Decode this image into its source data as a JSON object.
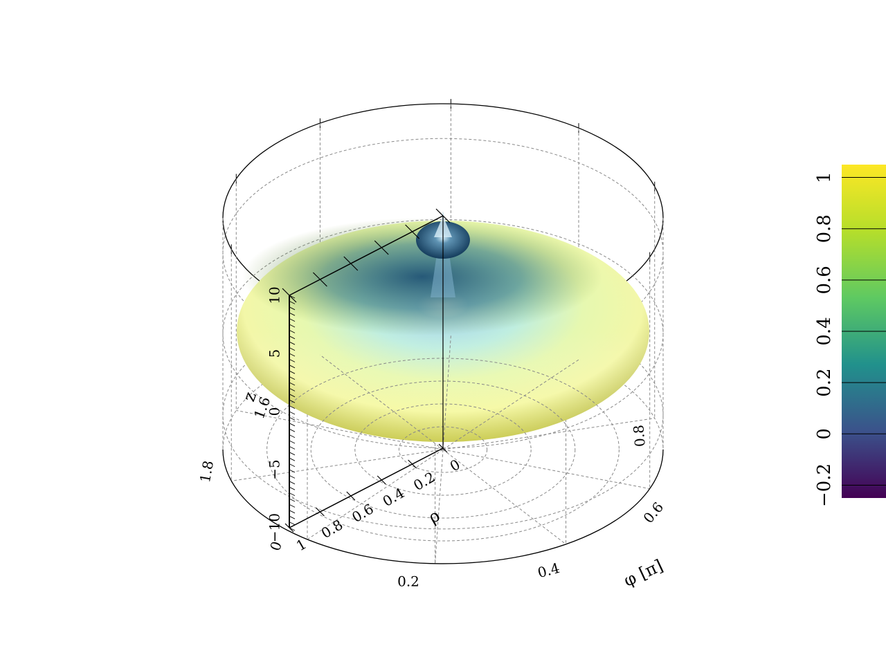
{
  "chart_data": {
    "type": "surface3d",
    "coordinate_system": "cylindrical",
    "axes": {
      "phi": {
        "label": "φ [π]",
        "ticks": [
          "0",
          "0.2",
          "0.4",
          "0.6",
          "0.8",
          "1.6",
          "1.8"
        ]
      },
      "rho": {
        "label": "ρ",
        "range": [
          0,
          1
        ],
        "ticks": [
          "0",
          "0.2",
          "0.4",
          "0.6",
          "0.8",
          "1"
        ]
      },
      "z": {
        "label": "z",
        "range": [
          -10,
          10
        ],
        "ticks": [
          "−10",
          "−5",
          "0",
          "5",
          "10"
        ]
      }
    },
    "grid": true,
    "colorbar": {
      "range": [
        -0.25,
        1.05
      ],
      "ticks": [
        -0.2,
        0,
        0.2,
        0.4,
        0.6,
        0.8,
        1
      ],
      "tick_labels": [
        "−0.2",
        "0",
        "0.2",
        "0.4",
        "0.6",
        "0.8",
        "1"
      ],
      "colormap": [
        "#440154",
        "#3b528b",
        "#21918c",
        "#5ec962",
        "#b5de2b",
        "#fde725"
      ],
      "placement": "right"
    },
    "surface": {
      "shape": "flattened disc with central spike",
      "z_center": 2.2
    }
  }
}
